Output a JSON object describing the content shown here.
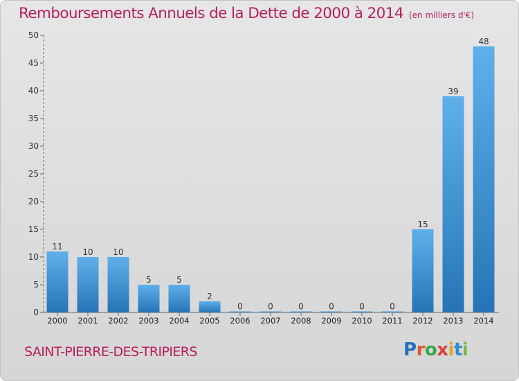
{
  "chart_data": {
    "type": "bar",
    "title": "Remboursements Annuels de la Dette de 2000 à 2014",
    "unit_note": "(en milliers d'€)",
    "categories": [
      "2000",
      "2001",
      "2002",
      "2003",
      "2004",
      "2005",
      "2006",
      "2007",
      "2008",
      "2009",
      "2010",
      "2011",
      "2012",
      "2013",
      "2014"
    ],
    "values": [
      11,
      10,
      10,
      5,
      5,
      2,
      0,
      0,
      0,
      0,
      0,
      0,
      15,
      39,
      48
    ],
    "ylim": [
      0,
      50
    ],
    "yticks": [
      0,
      5,
      10,
      15,
      20,
      25,
      30,
      35,
      40,
      45,
      50
    ],
    "grid": false,
    "bar_color": "#3a8fd6",
    "bar_color_light": "#5fb0ea",
    "bar_color_dark": "#2674b6"
  },
  "footer": {
    "commune": "SAINT-PIERRE-DES-TRIPIERS"
  },
  "logo": {
    "text": "Proxiti"
  },
  "colors": {
    "title": "#b81e5e",
    "axis": "#666666"
  }
}
